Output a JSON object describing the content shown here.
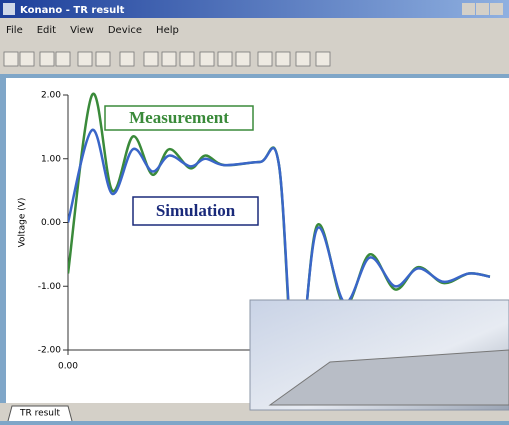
{
  "window": {
    "title": "Konano - TR result",
    "menu": [
      "File",
      "Edit",
      "View",
      "Device",
      "Help"
    ],
    "tab": "TR result"
  },
  "chart_data": {
    "type": "line",
    "y_label": "Voltage (V)",
    "annotations": [
      "Measurement",
      "Simulation"
    ],
    "x": [
      0,
      0.57,
      1.05,
      1.54,
      2.0,
      2.4,
      2.9,
      3.25,
      3.7,
      4.55,
      5.0,
      5.4,
      5.9,
      6.55,
      7.15,
      7.75,
      8.3,
      8.9,
      9.5,
      10
    ],
    "series": [
      {
        "name": "Measurement",
        "color": "#3a8a3a",
        "values": [
          -0.8,
          2.0,
          0.5,
          1.35,
          0.75,
          1.15,
          0.85,
          1.05,
          0.9,
          0.95,
          0.9,
          -2.6,
          -0.05,
          -1.3,
          -0.5,
          -1.05,
          -0.7,
          -0.95,
          -0.8,
          -0.85
        ]
      },
      {
        "name": "Simulation",
        "color": "#3a66c8",
        "values": [
          0.0,
          1.45,
          0.45,
          1.15,
          0.8,
          1.05,
          0.88,
          1.0,
          0.9,
          0.95,
          0.9,
          -2.5,
          -0.1,
          -1.25,
          -0.55,
          -1.0,
          -0.72,
          -0.93,
          -0.8,
          -0.85
        ]
      }
    ],
    "xlim": [
      0,
      10
    ],
    "xticks": [
      {
        "value": 0,
        "label": "0.00"
      }
    ],
    "ylim": [
      -2,
      2
    ],
    "yticks": [
      {
        "value": 2,
        "label": "2.00"
      },
      {
        "value": 1,
        "label": "1.00"
      },
      {
        "value": 0,
        "label": "0.00"
      },
      {
        "value": -1,
        "label": "-1.00"
      },
      {
        "value": -2,
        "label": "-2.00"
      }
    ]
  }
}
